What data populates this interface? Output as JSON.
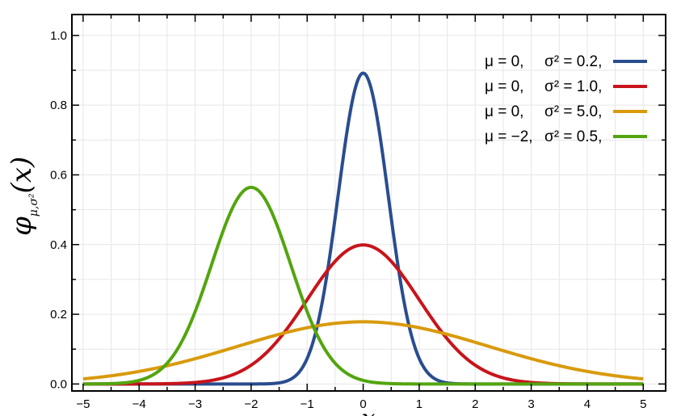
{
  "chart_data": {
    "type": "line",
    "xlabel": "x",
    "ylabel": {
      "base": "φ",
      "subscript": "μ,σ²",
      "argument": "(x)"
    },
    "xlim": [
      -5.2,
      5.4
    ],
    "ylim": [
      -0.02,
      1.06
    ],
    "xticks": [
      -5,
      -4,
      -3,
      -2,
      -1,
      0,
      1,
      2,
      3,
      4,
      5
    ],
    "xtick_labels": [
      "−5",
      "−4",
      "−3",
      "−2",
      "−1",
      "0",
      "1",
      "2",
      "3",
      "4",
      "5"
    ],
    "yticks": [
      0.0,
      0.2,
      0.4,
      0.6,
      0.8,
      1.0
    ],
    "ytick_labels": [
      "0.0",
      "0.2",
      "0.4",
      "0.6",
      "0.8",
      "1.0"
    ],
    "grid": true,
    "legend_position": "top-right",
    "series": [
      {
        "mu_label": "μ = 0,",
        "sigma_label": "σ² = 0.2,",
        "mu": 0,
        "variance": 0.2,
        "color": "#2a4d8f",
        "peak": 0.892
      },
      {
        "mu_label": "μ = 0,",
        "sigma_label": "σ² = 1.0,",
        "mu": 0,
        "variance": 1.0,
        "color": "#c8141b",
        "peak": 0.399
      },
      {
        "mu_label": "μ = 0,",
        "sigma_label": "σ² = 5.0,",
        "mu": 0,
        "variance": 5.0,
        "color": "#d99a0c",
        "peak": 0.178
      },
      {
        "mu_label": "μ = −2,",
        "sigma_label": "σ² = 0.5,",
        "mu": -2,
        "variance": 0.5,
        "color": "#53a50f",
        "peak": 0.564
      }
    ]
  }
}
